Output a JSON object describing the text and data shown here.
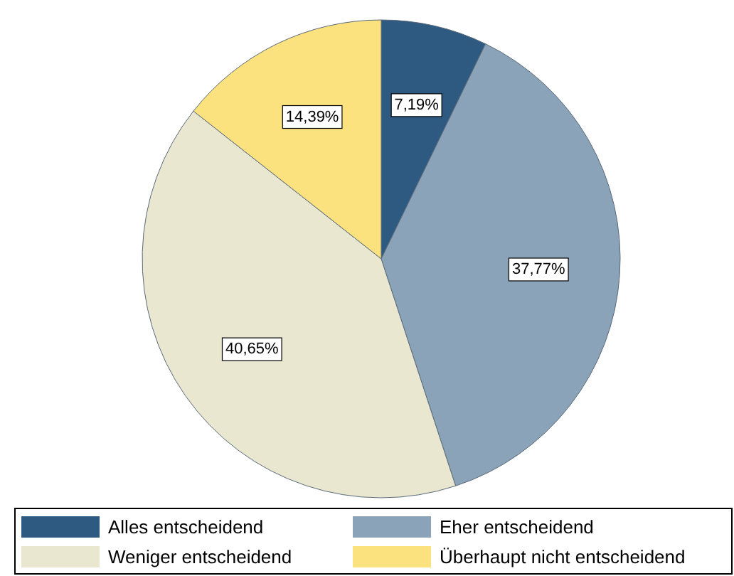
{
  "chart_data": {
    "type": "pie",
    "categories": [
      "Alles entscheidend",
      "Eher entscheidend",
      "Weniger entscheidend",
      "Überhaupt nicht entscheidend"
    ],
    "values": [
      7.19,
      37.77,
      40.65,
      14.39
    ],
    "colors": [
      "#2e5a82",
      "#8ba3b8",
      "#e9e7d0",
      "#fce17f"
    ],
    "value_labels": [
      "7,19%",
      "37,77%",
      "40,65%",
      "14,39%"
    ],
    "legend": "bottom"
  }
}
